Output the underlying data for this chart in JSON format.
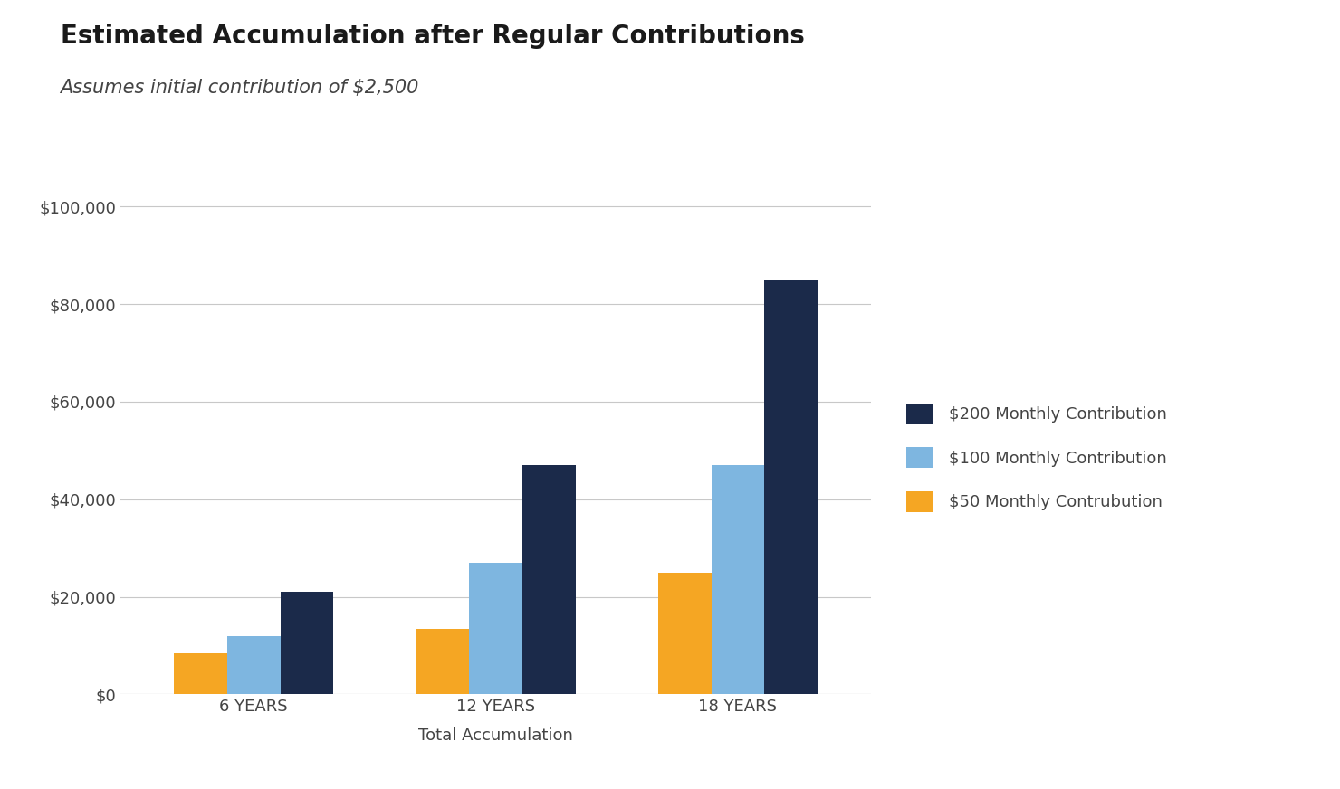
{
  "title": "Estimated Accumulation after Regular Contributions",
  "subtitle": "Assumes initial contribution of $2,500",
  "xlabel": "Total Accumulation",
  "categories": [
    "6 YEARS",
    "12 YEARS",
    "18 YEARS"
  ],
  "series": [
    {
      "label": "$200 Monthly Contribution",
      "color": "#1b2a4a",
      "values": [
        21000,
        47000,
        85000
      ]
    },
    {
      "label": "$100 Monthly Contribution",
      "color": "#7eb6e0",
      "values": [
        12000,
        27000,
        47000
      ]
    },
    {
      "label": "$50 Monthly Contrubution",
      "color": "#f5a623",
      "values": [
        8500,
        13500,
        25000
      ]
    }
  ],
  "ylim": [
    0,
    110000
  ],
  "yticks": [
    0,
    20000,
    40000,
    60000,
    80000,
    100000
  ],
  "background_color": "#ffffff",
  "title_fontsize": 20,
  "subtitle_fontsize": 15,
  "axis_label_fontsize": 13,
  "tick_fontsize": 13,
  "legend_fontsize": 13,
  "bar_width": 0.22,
  "grid_color": "#c8c8c8",
  "text_color": "#444444"
}
